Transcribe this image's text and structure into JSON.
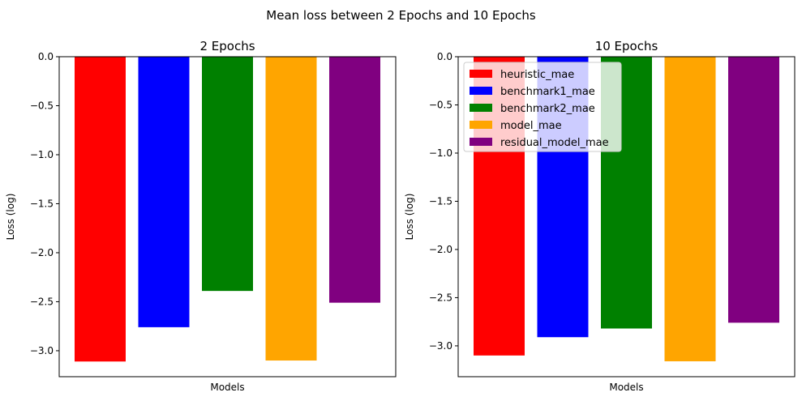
{
  "figure": {
    "suptitle": "Mean loss between 2 Epochs and 10 Epochs"
  },
  "chart_data": [
    {
      "type": "bar",
      "title": "2 Epochs",
      "xlabel": "Models",
      "ylabel": "Loss (log)",
      "ylim": [
        -3.265,
        0.0
      ],
      "yticks": [
        0.0,
        -0.5,
        -1.0,
        -1.5,
        -2.0,
        -2.5,
        -3.0
      ],
      "ytick_labels": [
        "0.0",
        "−0.5",
        "−1.0",
        "−1.5",
        "−2.0",
        "−2.5",
        "−3.0"
      ],
      "series": [
        {
          "name": "heuristic_mae",
          "color": "#ff0000",
          "value": -3.11
        },
        {
          "name": "benchmark1_mae",
          "color": "#0000ff",
          "value": -2.76
        },
        {
          "name": "benchmark2_mae",
          "color": "#008000",
          "value": -2.39
        },
        {
          "name": "model_mae",
          "color": "#ffa500",
          "value": -3.1
        },
        {
          "name": "residual_model_mae",
          "color": "#800080",
          "value": -2.51
        }
      ],
      "legend": false,
      "grid": false
    },
    {
      "type": "bar",
      "title": "10 Epochs",
      "xlabel": "Models",
      "ylabel": "Loss (log)",
      "ylim": [
        -3.32,
        0.0
      ],
      "yticks": [
        0.0,
        -0.5,
        -1.0,
        -1.5,
        -2.0,
        -2.5,
        -3.0
      ],
      "ytick_labels": [
        "0.0",
        "−0.5",
        "−1.0",
        "−1.5",
        "−2.0",
        "−2.5",
        "−3.0"
      ],
      "series": [
        {
          "name": "heuristic_mae",
          "color": "#ff0000",
          "value": -3.1
        },
        {
          "name": "benchmark1_mae",
          "color": "#0000ff",
          "value": -2.91
        },
        {
          "name": "benchmark2_mae",
          "color": "#008000",
          "value": -2.82
        },
        {
          "name": "model_mae",
          "color": "#ffa500",
          "value": -3.16
        },
        {
          "name": "residual_model_mae",
          "color": "#800080",
          "value": -2.76
        }
      ],
      "legend": true,
      "legend_position": "top-left",
      "grid": false
    }
  ]
}
